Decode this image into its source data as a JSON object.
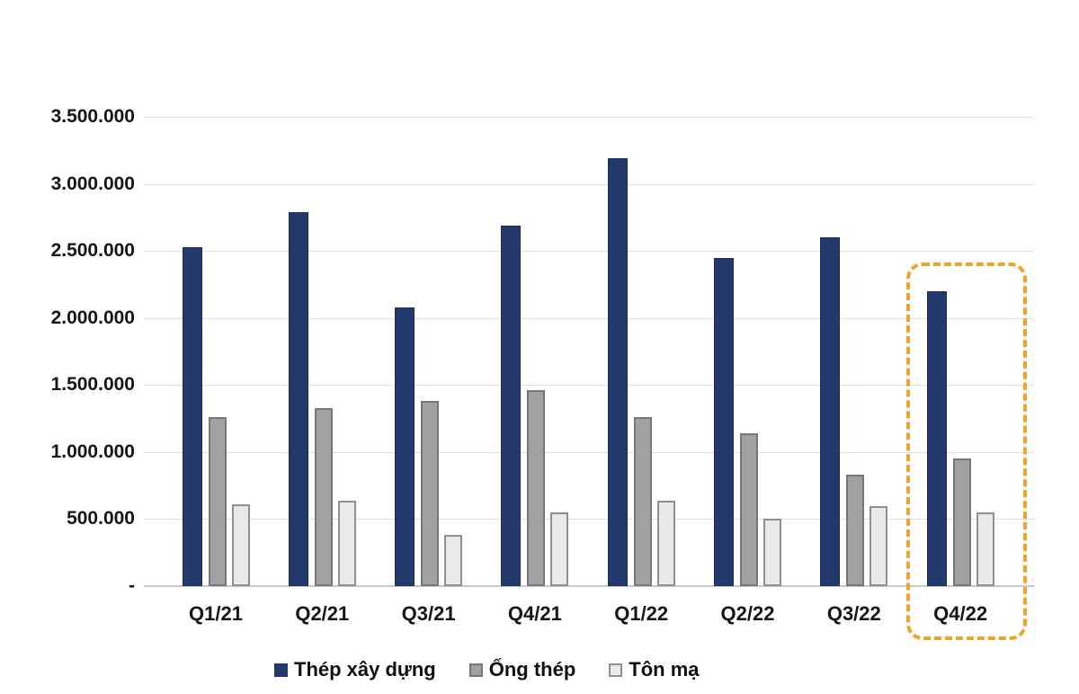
{
  "chart_data": {
    "type": "bar",
    "title": "",
    "categories": [
      "Q1/21",
      "Q2/21",
      "Q3/21",
      "Q4/21",
      "Q1/22",
      "Q2/22",
      "Q3/22",
      "Q4/22"
    ],
    "series": [
      {
        "name": "Thép xây dựng",
        "fill": "#24396b",
        "border": "#1c2e56",
        "values": [
          2530000,
          2790000,
          2080000,
          2690000,
          3190000,
          2450000,
          2600000,
          2200000
        ]
      },
      {
        "name": "Ống thép",
        "fill": "#a1a1a3",
        "border": "#77787a",
        "values": [
          1260000,
          1330000,
          1380000,
          1460000,
          1260000,
          1140000,
          830000,
          950000
        ]
      },
      {
        "name": "Tôn mạ",
        "fill": "#e9e9e7",
        "border": "#8f8f8f",
        "values": [
          610000,
          640000,
          380000,
          550000,
          640000,
          500000,
          600000,
          550000
        ]
      }
    ],
    "ylim": [
      0,
      3500000
    ],
    "y_tick_labels": [
      "3.500.000",
      "3.000.000",
      "2.500.000",
      "2.000.000",
      "1.500.000",
      "1.000.000",
      "500.000",
      "-"
    ],
    "grid": true,
    "legend_position": "bottom",
    "highlight": {
      "category": "Q4/22",
      "style": "dashed-rounded-rect",
      "color": "#f0a22e"
    }
  },
  "legend": {
    "items": [
      {
        "label": "Thép xây dựng"
      },
      {
        "label": "Ống thép"
      },
      {
        "label": "Tôn mạ"
      }
    ]
  }
}
